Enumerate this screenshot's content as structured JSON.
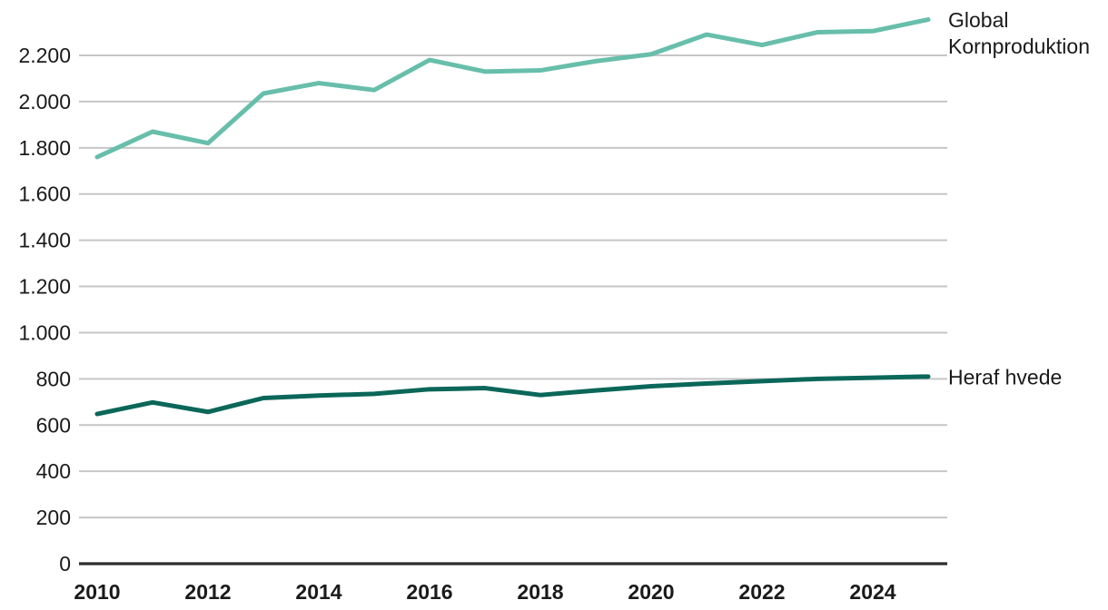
{
  "page": {
    "background": "#ffffff",
    "text_color": "#1a1a1a"
  },
  "chart_data": {
    "type": "line",
    "x": [
      2010,
      2011,
      2012,
      2013,
      2014,
      2015,
      2016,
      2017,
      2018,
      2019,
      2020,
      2021,
      2022,
      2023,
      2024,
      2025
    ],
    "series": [
      {
        "name": "Global Kornproduktion",
        "label_lines": [
          "Global",
          "Kornproduktion"
        ],
        "color": "#67beab",
        "values": [
          1760,
          1870,
          1820,
          2035,
          2080,
          2050,
          2180,
          2130,
          2135,
          2175,
          2205,
          2290,
          2245,
          2300,
          2305,
          2355
        ]
      },
      {
        "name": "Heraf hvede",
        "label_lines": [
          "Heraf hvede"
        ],
        "color": "#0a6759",
        "values": [
          648,
          698,
          657,
          717,
          728,
          735,
          755,
          760,
          730,
          750,
          768,
          780,
          790,
          800,
          805,
          810
        ]
      }
    ],
    "x_ticks": [
      {
        "value": 2010,
        "label": "2010"
      },
      {
        "value": 2012,
        "label": "2012"
      },
      {
        "value": 2014,
        "label": "2014"
      },
      {
        "value": 2016,
        "label": "2016"
      },
      {
        "value": 2018,
        "label": "2018"
      },
      {
        "value": 2020,
        "label": "2020"
      },
      {
        "value": 2022,
        "label": "2022"
      },
      {
        "value": 2024,
        "label": "2024"
      }
    ],
    "y_ticks": [
      {
        "value": 0,
        "label": "0"
      },
      {
        "value": 200,
        "label": "200"
      },
      {
        "value": 400,
        "label": "400"
      },
      {
        "value": 600,
        "label": "600"
      },
      {
        "value": 800,
        "label": "800"
      },
      {
        "value": 1000,
        "label": "1.000"
      },
      {
        "value": 1200,
        "label": "1.200"
      },
      {
        "value": 1400,
        "label": "1.400"
      },
      {
        "value": 1600,
        "label": "1.600"
      },
      {
        "value": 1800,
        "label": "1.800"
      },
      {
        "value": 2000,
        "label": "2.000"
      },
      {
        "value": 2200,
        "label": "2.200"
      }
    ],
    "y_axis": {
      "min": 0,
      "max": 2200,
      "step": 200,
      "number_format": "da-DK"
    },
    "x_axis": {
      "min": 2010,
      "max": 2025
    },
    "grid": true,
    "legend_position": "right-of-line-end",
    "title": "",
    "xlabel": "",
    "ylabel": "",
    "colors": {
      "grid": "#c6c6c6",
      "axis": "#2d2d2d",
      "text": "#1a1a1a"
    }
  }
}
